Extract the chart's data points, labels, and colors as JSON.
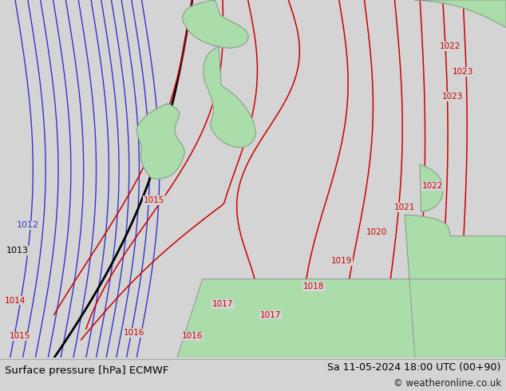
{
  "title_left": "Surface pressure [hPa] ECMWF",
  "title_right": "Sa 11-05-2024 18:00 UTC (00+90)",
  "copyright": "© weatheronline.co.uk",
  "bg_color": "#d4d4d4",
  "land_color": "#aaddaa",
  "border_color": "#888888",
  "blue_color": "#3333cc",
  "black_color": "#000000",
  "red_color": "#cc0000",
  "bottom_color": "#e8e8e8",
  "figwidth": 6.34,
  "figheight": 4.9,
  "dpi": 100
}
